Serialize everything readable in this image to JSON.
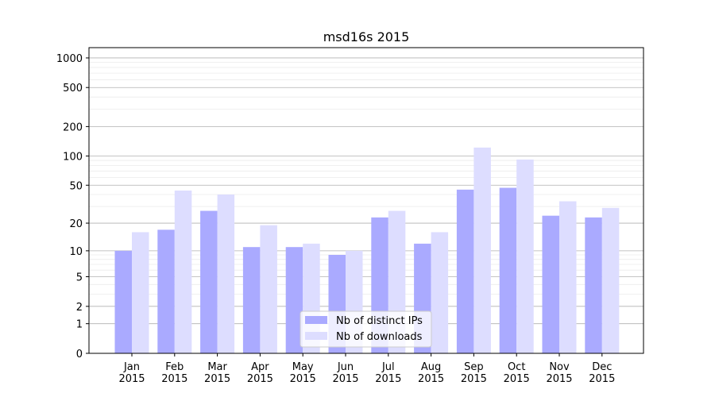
{
  "chart_data": {
    "type": "bar",
    "title": "msd16s 2015",
    "xlabel": "",
    "ylabel": "",
    "yscale": "log(x+1)",
    "ylim": [
      0,
      1270
    ],
    "yticks": [
      0,
      1,
      2,
      5,
      10,
      20,
      50,
      100,
      200,
      500,
      1000
    ],
    "grid": true,
    "legend_position": "bottom-center",
    "categories": [
      "Jan\n2015",
      "Feb\n2015",
      "Mar\n2015",
      "Apr\n2015",
      "May\n2015",
      "Jun\n2015",
      "Jul\n2015",
      "Aug\n2015",
      "Sep\n2015",
      "Oct\n2015",
      "Nov\n2015",
      "Dec\n2015"
    ],
    "series": [
      {
        "name": "Nb of distinct IPs",
        "color": "#aaaaff",
        "values": [
          10,
          17,
          27,
          11,
          11,
          9,
          23,
          12,
          45,
          47,
          24,
          23
        ]
      },
      {
        "name": "Nb of downloads",
        "color": "#ddddff",
        "values": [
          16,
          44,
          40,
          19,
          12,
          10,
          27,
          16,
          122,
          92,
          34,
          29
        ]
      }
    ]
  }
}
